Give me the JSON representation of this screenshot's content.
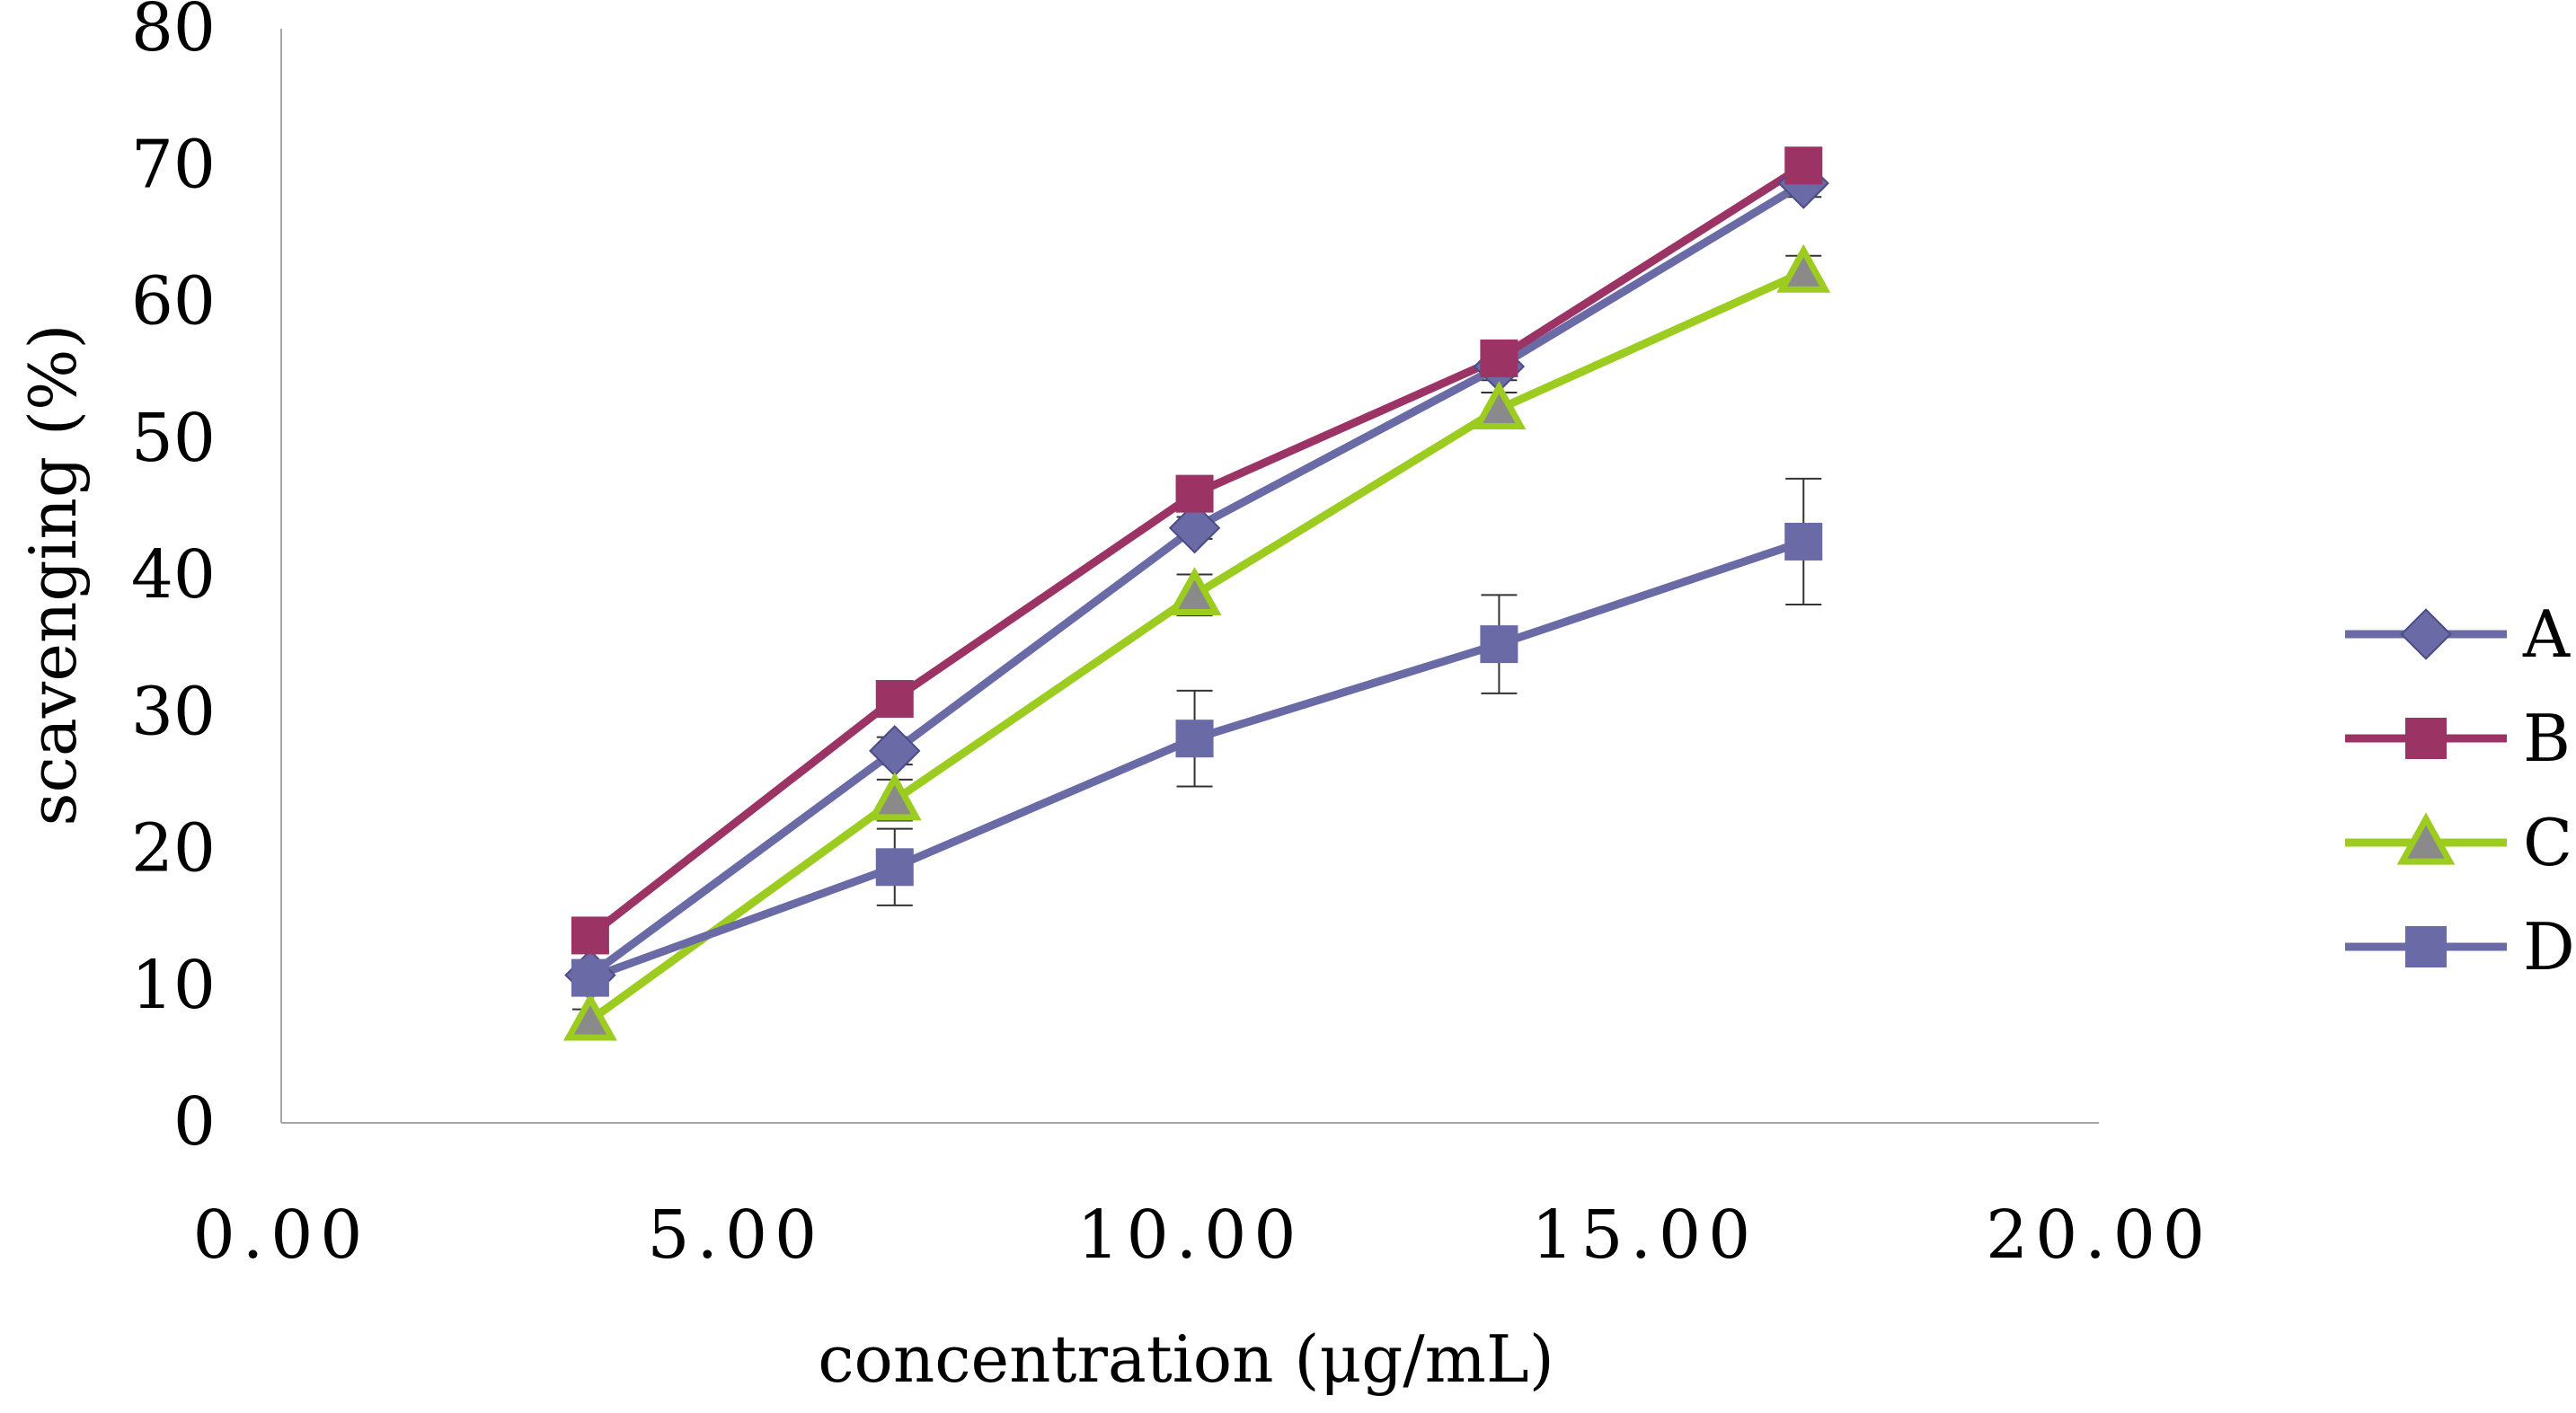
{
  "chart_data": {
    "type": "line",
    "title": "",
    "xlabel": "concentration (μg/mL)",
    "ylabel": "scavenging (%)",
    "xlim": [
      0,
      20
    ],
    "ylim": [
      0,
      80
    ],
    "x_ticks": [
      0,
      5,
      10,
      15,
      20
    ],
    "x_tick_labels": [
      "0.00",
      "5.00",
      "10.00",
      "15.00",
      "20.00"
    ],
    "y_ticks": [
      0,
      10,
      20,
      30,
      40,
      50,
      60,
      70,
      80
    ],
    "y_tick_labels": [
      "0",
      "10",
      "20",
      "30",
      "40",
      "50",
      "60",
      "70",
      "80"
    ],
    "grid": false,
    "legend_position": "right",
    "x": [
      3.4,
      6.75,
      10.05,
      13.4,
      16.75
    ],
    "series": [
      {
        "name": "A",
        "color": "#6a6aa6",
        "marker": "diamond",
        "values": [
          10.8,
          27.2,
          43.5,
          55.3,
          68.7
        ],
        "errors": [
          0.6,
          1.0,
          0.8,
          1.0,
          1.0
        ]
      },
      {
        "name": "B",
        "color": "#9b3465",
        "marker": "square",
        "values": [
          13.7,
          31.0,
          46.0,
          55.9,
          70.0
        ],
        "errors": [
          0.6,
          0.8,
          1.3,
          1.0,
          1.2
        ]
      },
      {
        "name": "C",
        "color": "#9ccc1f",
        "marker": "triangle",
        "values": [
          7.5,
          23.6,
          38.6,
          52.2,
          62.2
        ],
        "errors": [
          0.8,
          1.5,
          1.5,
          1.2,
          1.2
        ]
      },
      {
        "name": "D",
        "color": "#6a6aa6",
        "marker": "square",
        "values": [
          10.6,
          18.7,
          28.1,
          35.0,
          42.5
        ],
        "errors": [
          1.2,
          2.8,
          3.5,
          3.6,
          4.6
        ]
      }
    ]
  }
}
